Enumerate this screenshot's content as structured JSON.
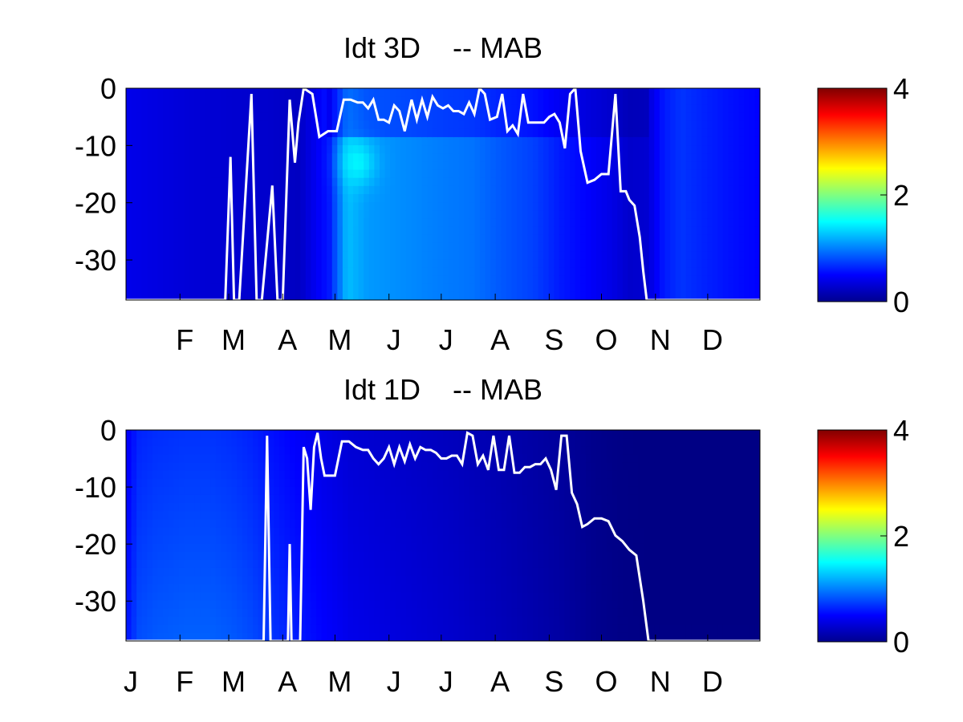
{
  "chart_data": [
    {
      "type": "heatmap",
      "title": "Idt 3D    -- MAB",
      "xticks": [
        "F",
        "M",
        "A",
        "M",
        "J",
        "J",
        "A",
        "S",
        "O",
        "N",
        "D"
      ],
      "xtick_days": [
        32,
        60,
        91,
        121,
        152,
        182,
        213,
        244,
        274,
        305,
        335
      ],
      "xlim": [
        1,
        365
      ],
      "yticks": [
        0,
        -10,
        -20,
        -30
      ],
      "ylim": [
        -37,
        0
      ],
      "colorbar": {
        "ticks": [
          0,
          2,
          4
        ],
        "lim": [
          0,
          4
        ],
        "colormap": "jet"
      },
      "field": {
        "day_profile": [
          [
            1,
            0.42
          ],
          [
            20,
            0.38
          ],
          [
            40,
            0.34
          ],
          [
            60,
            0.32
          ],
          [
            85,
            0.3
          ],
          [
            100,
            0.26
          ],
          [
            118,
            0.6
          ],
          [
            128,
            1.25
          ],
          [
            140,
            1.1
          ],
          [
            160,
            1.05
          ],
          [
            185,
            0.98
          ],
          [
            200,
            0.95
          ],
          [
            215,
            0.85
          ],
          [
            235,
            0.75
          ],
          [
            250,
            0.6
          ],
          [
            265,
            0.5
          ],
          [
            280,
            0.4
          ],
          [
            290,
            0.3
          ],
          [
            300,
            0.32
          ],
          [
            310,
            0.6
          ],
          [
            320,
            0.7
          ],
          [
            335,
            0.62
          ],
          [
            350,
            0.55
          ],
          [
            365,
            0.5
          ]
        ],
        "hotspot": {
          "day": 134,
          "depth": -13,
          "peak": 1.5
        }
      },
      "series": [
        {
          "color": "#ffffff",
          "x": [
            1,
            58,
            61,
            63,
            66,
            73,
            76,
            79,
            85,
            88,
            91,
            95,
            98,
            100,
            103,
            108,
            112,
            117,
            122,
            126,
            130,
            134,
            137,
            140,
            143,
            146,
            149,
            152,
            155,
            158,
            161,
            165,
            168,
            171,
            174,
            177,
            180,
            183,
            186,
            189,
            192,
            195,
            198,
            201,
            204,
            207,
            210,
            214,
            217,
            220,
            223,
            226,
            229,
            232,
            235,
            238,
            241,
            244,
            247,
            250,
            253,
            256,
            259,
            262,
            266,
            270,
            274,
            278,
            282,
            285,
            288,
            290,
            293,
            296,
            298,
            300,
            365
          ],
          "y": [
            -37,
            -37,
            -12,
            -37,
            -37,
            -1,
            -37,
            -37,
            -17,
            -37,
            -37,
            -2,
            -13,
            -6,
            0,
            -1,
            -8.5,
            -7.5,
            -7.5,
            -2,
            -2,
            -2.5,
            -2.5,
            -3.5,
            -2,
            -5.5,
            -5.5,
            -6,
            -3,
            -4,
            -7.5,
            -2,
            -5.5,
            -2,
            -5,
            -1.5,
            -3,
            -3.5,
            -3,
            -4,
            -4,
            -4.5,
            -2.5,
            -4.5,
            0,
            -1,
            -5.5,
            -5,
            -1,
            -7.5,
            -6.5,
            -8,
            -1,
            -6,
            -6,
            -6,
            -6,
            -5,
            -4.5,
            -6,
            -10.5,
            -1,
            0,
            -11,
            -16.5,
            -16,
            -15,
            -15,
            -1,
            -18,
            -18,
            -19.5,
            -20.5,
            -26,
            -32,
            -37,
            -37
          ]
        }
      ]
    },
    {
      "type": "heatmap",
      "title": "Idt 1D    -- MAB",
      "xticks": [
        "J",
        "F",
        "M",
        "A",
        "M",
        "J",
        "J",
        "A",
        "S",
        "O",
        "N",
        "D"
      ],
      "xtick_days": [
        1,
        32,
        60,
        91,
        121,
        152,
        182,
        213,
        244,
        274,
        305,
        335
      ],
      "xlim": [
        1,
        365
      ],
      "yticks": [
        0,
        -10,
        -20,
        -30
      ],
      "ylim": [
        -37,
        0
      ],
      "colorbar": {
        "ticks": [
          0,
          2,
          4
        ],
        "lim": [
          0,
          4
        ],
        "colormap": "jet"
      },
      "field": {
        "day_profile": [
          [
            1,
            0.55
          ],
          [
            8,
            0.8
          ],
          [
            18,
            0.85
          ],
          [
            35,
            0.88
          ],
          [
            50,
            0.88
          ],
          [
            62,
            0.85
          ],
          [
            72,
            0.8
          ],
          [
            85,
            0.7
          ],
          [
            100,
            0.6
          ],
          [
            115,
            0.5
          ],
          [
            130,
            0.42
          ],
          [
            160,
            0.36
          ],
          [
            190,
            0.3
          ],
          [
            220,
            0.22
          ],
          [
            250,
            0.14
          ],
          [
            270,
            0.06
          ],
          [
            285,
            0.03
          ],
          [
            300,
            0.02
          ],
          [
            365,
            0.02
          ]
        ],
        "depth_decay": 0.35
      },
      "series": [
        {
          "color": "#ffffff",
          "x": [
            1,
            80,
            82,
            84,
            86,
            88,
            94,
            95,
            96,
            101,
            103,
            105,
            107,
            109,
            111,
            113,
            115,
            117,
            121,
            125,
            129,
            133,
            137,
            140,
            143,
            146,
            149,
            152,
            155,
            158,
            161,
            164,
            167,
            170,
            173,
            176,
            179,
            182,
            185,
            188,
            191,
            194,
            197,
            200,
            203,
            206,
            209,
            212,
            215,
            218,
            221,
            224,
            227,
            230,
            233,
            236,
            239,
            242,
            245,
            248,
            251,
            254,
            257,
            260,
            263,
            266,
            270,
            274,
            278,
            282,
            286,
            290,
            294,
            298,
            301,
            302,
            365
          ],
          "y": [
            -37,
            -37,
            -1,
            -37,
            -37,
            -37,
            -37,
            -20,
            -37,
            -37,
            -3,
            -5,
            -14,
            -3,
            -0.5,
            -5,
            -8,
            -8,
            -8,
            -2,
            -2,
            -3,
            -3.5,
            -3.5,
            -5,
            -6,
            -5,
            -3,
            -6,
            -3,
            -5.5,
            -2.5,
            -5,
            -3,
            -3.5,
            -3.5,
            -4,
            -5,
            -5,
            -4.5,
            -4.5,
            -6,
            -0.5,
            -1,
            -6,
            -4.5,
            -7,
            -1,
            -7,
            -7,
            -1,
            -7.5,
            -7.5,
            -6.5,
            -6.5,
            -6,
            -6,
            -5,
            -7,
            -10.5,
            -1,
            -1,
            -11,
            -13,
            -17,
            -16.5,
            -15.5,
            -15.5,
            -16,
            -18.5,
            -19.5,
            -21,
            -22,
            -30,
            -37,
            -37,
            -37
          ]
        }
      ]
    }
  ]
}
